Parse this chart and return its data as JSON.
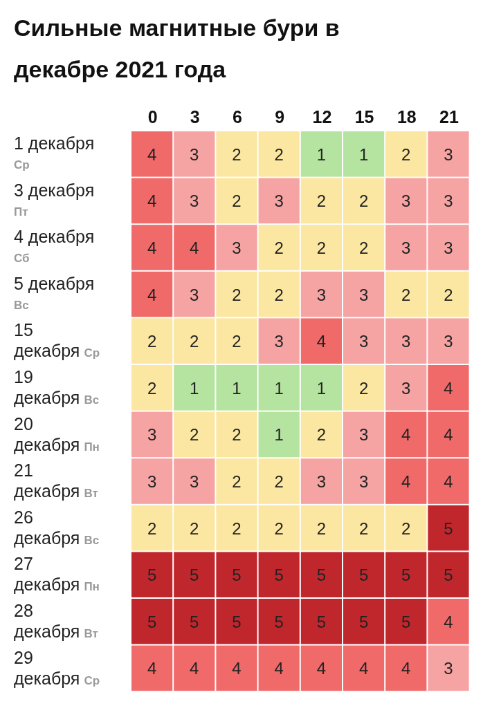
{
  "chart_data": {
    "type": "heatmap",
    "title": "Сильные магнитные бури в декабре 2021 года",
    "categories": [
      "0",
      "3",
      "6",
      "9",
      "12",
      "15",
      "18",
      "21"
    ],
    "y_categories": [
      "1 декабря Ср",
      "3 декабря Пт",
      "4 декабря Сб",
      "5 декабря Вс",
      "15 декабря Ср",
      "19 декабря Вс",
      "20 декабря Пн",
      "21 декабря Вт",
      "26 декабря Вс",
      "27 декабря Пн",
      "28 декабря Вт",
      "29 декабря Ср"
    ],
    "cells": [
      [
        4,
        3,
        2,
        2,
        1,
        1,
        2,
        3
      ],
      [
        4,
        3,
        2,
        3,
        2,
        2,
        3,
        3
      ],
      [
        4,
        4,
        3,
        2,
        2,
        2,
        3,
        3
      ],
      [
        4,
        3,
        2,
        2,
        3,
        3,
        2,
        2
      ],
      [
        2,
        2,
        2,
        3,
        4,
        3,
        3,
        3
      ],
      [
        2,
        1,
        1,
        1,
        1,
        2,
        3,
        4
      ],
      [
        3,
        2,
        2,
        1,
        2,
        3,
        4,
        4
      ],
      [
        3,
        3,
        2,
        2,
        3,
        3,
        4,
        4
      ],
      [
        2,
        2,
        2,
        2,
        2,
        2,
        2,
        5
      ],
      [
        5,
        5,
        5,
        5,
        5,
        5,
        5,
        5
      ],
      [
        5,
        5,
        5,
        5,
        5,
        5,
        5,
        4
      ],
      [
        4,
        4,
        4,
        4,
        4,
        4,
        4,
        3
      ]
    ],
    "colors": [
      "#b5e3a0",
      "#fbe7a1",
      "#f5a3a3",
      "#f06a6a",
      "#c0272d"
    ],
    "data_labels": true
  }
}
